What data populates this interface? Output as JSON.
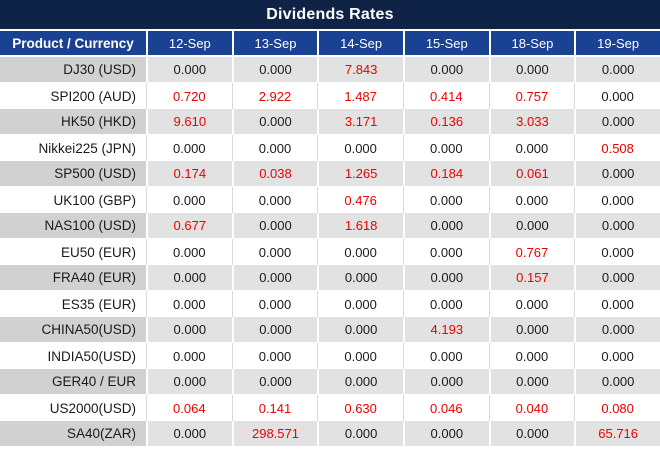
{
  "title": "Dividends Rates",
  "colors": {
    "title_bar_bg": "#0e2345",
    "header_row_bg": "#1a4293",
    "gray_row_values_bg": "#e3e2e2",
    "gray_row_product_bg": "#d2d1d1",
    "nonzero_value_red": "#ee0000",
    "zero_value_text": "#1a1a1a",
    "grid_line_light": "#d9d9d9"
  },
  "table": {
    "product_header": "Product / Currency",
    "date_headers": [
      "12-Sep",
      "13-Sep",
      "14-Sep",
      "15-Sep",
      "18-Sep",
      "19-Sep"
    ],
    "rows": [
      {
        "product": "DJ30 (USD)",
        "values": [
          "0.000",
          "0.000",
          "7.843",
          "0.000",
          "0.000",
          "0.000"
        ]
      },
      {
        "product": "SPI200 (AUD)",
        "values": [
          "0.720",
          "2.922",
          "1.487",
          "0.414",
          "0.757",
          "0.000"
        ]
      },
      {
        "product": "HK50 (HKD)",
        "values": [
          "9.610",
          "0.000",
          "3.171",
          "0.136",
          "3.033",
          "0.000"
        ]
      },
      {
        "product": "Nikkei225 (JPN)",
        "values": [
          "0.000",
          "0.000",
          "0.000",
          "0.000",
          "0.000",
          "0.508"
        ]
      },
      {
        "product": "SP500 (USD)",
        "values": [
          "0.174",
          "0.038",
          "1.265",
          "0.184",
          "0.061",
          "0.000"
        ]
      },
      {
        "product": "UK100 (GBP)",
        "values": [
          "0.000",
          "0.000",
          "0.476",
          "0.000",
          "0.000",
          "0.000"
        ]
      },
      {
        "product": "NAS100 (USD)",
        "values": [
          "0.677",
          "0.000",
          "1.618",
          "0.000",
          "0.000",
          "0.000"
        ]
      },
      {
        "product": "EU50 (EUR)",
        "values": [
          "0.000",
          "0.000",
          "0.000",
          "0.000",
          "0.767",
          "0.000"
        ]
      },
      {
        "product": "FRA40 (EUR)",
        "values": [
          "0.000",
          "0.000",
          "0.000",
          "0.000",
          "0.157",
          "0.000"
        ]
      },
      {
        "product": "ES35 (EUR)",
        "values": [
          "0.000",
          "0.000",
          "0.000",
          "0.000",
          "0.000",
          "0.000"
        ]
      },
      {
        "product": "CHINA50(USD)",
        "values": [
          "0.000",
          "0.000",
          "0.000",
          "4.193",
          "0.000",
          "0.000"
        ]
      },
      {
        "product": "INDIA50(USD)",
        "values": [
          "0.000",
          "0.000",
          "0.000",
          "0.000",
          "0.000",
          "0.000"
        ]
      },
      {
        "product": "GER40 / EUR",
        "values": [
          "0.000",
          "0.000",
          "0.000",
          "0.000",
          "0.000",
          "0.000"
        ]
      },
      {
        "product": "US2000(USD)",
        "values": [
          "0.064",
          "0.141",
          "0.630",
          "0.046",
          "0.040",
          "0.080"
        ]
      },
      {
        "product": "SA40(ZAR)",
        "values": [
          "0.000",
          "298.571",
          "0.000",
          "0.000",
          "0.000",
          "65.716"
        ]
      }
    ]
  }
}
